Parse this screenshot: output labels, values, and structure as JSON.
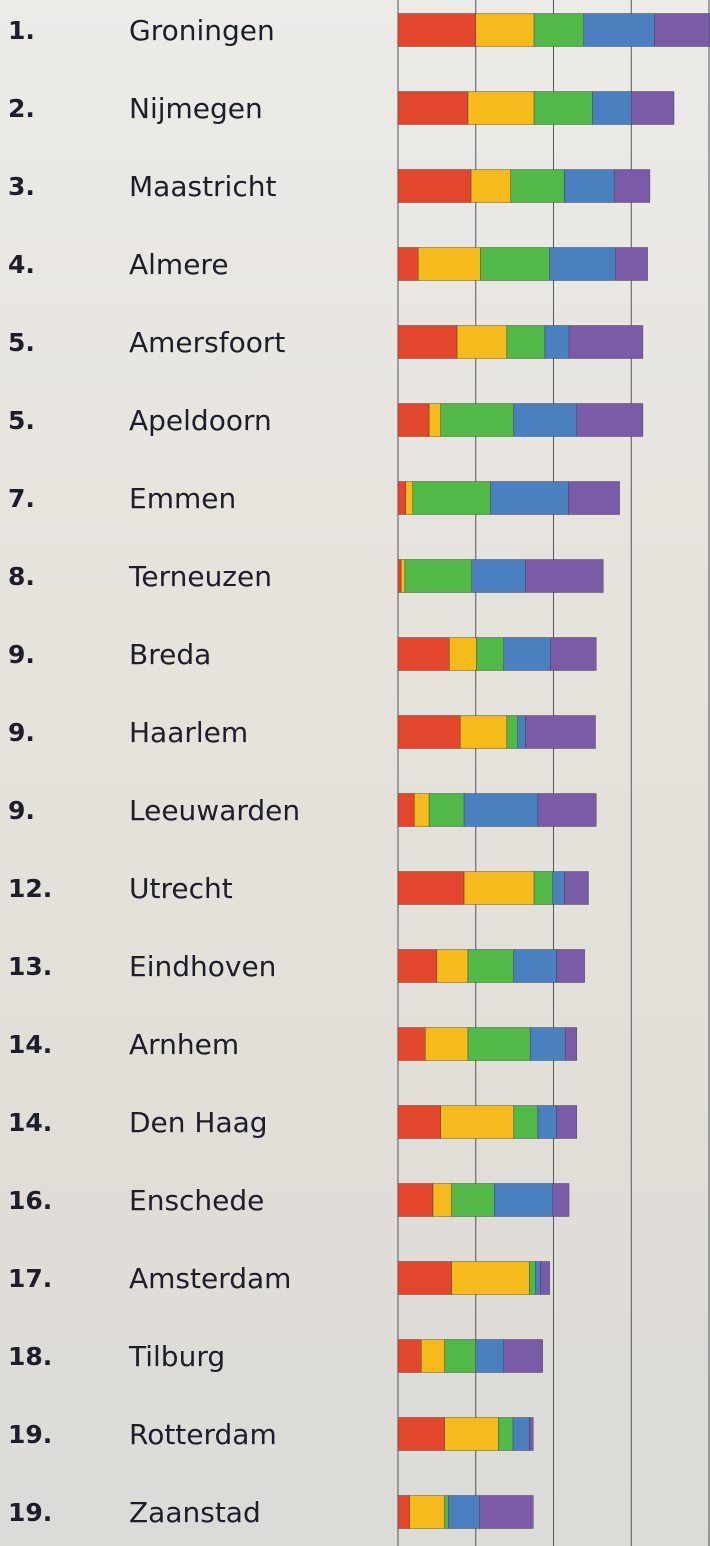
{
  "chart_data": {
    "type": "stacked-barh",
    "ranks": [
      "1.",
      "2.",
      "3.",
      "4.",
      "5.",
      "5.",
      "7.",
      "8.",
      "9.",
      "9.",
      "9.",
      "12.",
      "13.",
      "14.",
      "14.",
      "16.",
      "17.",
      "18.",
      "19.",
      "19."
    ],
    "categories": [
      "Groningen",
      "Nijmegen",
      "Maastricht",
      "Almere",
      "Amersfoort",
      "Apeldoorn",
      "Emmen",
      "Terneuzen",
      "Breda",
      "Haarlem",
      "Leeuwarden",
      "Utrecht",
      "Eindhoven",
      "Arnhem",
      "Den Haag",
      "Enschede",
      "Amsterdam",
      "Tilburg",
      "Rotterdam",
      "Zaanstad"
    ],
    "series": [
      {
        "color": "#e2462c",
        "values": [
          10,
          9,
          9.4,
          2.6,
          7.6,
          4,
          1,
          0.4,
          6.6,
          8,
          2.1,
          8.5,
          5,
          3.5,
          5.5,
          4.5,
          6.9,
          3,
          6,
          1.5
        ]
      },
      {
        "color": "#f5bb1c",
        "values": [
          7.5,
          8.5,
          5.1,
          8,
          6.4,
          1.5,
          0.9,
          0.5,
          3.5,
          6,
          1.9,
          9,
          4,
          5.5,
          9.4,
          2.4,
          10,
          3,
          6.9,
          4.5
        ]
      },
      {
        "color": "#52b847",
        "values": [
          6.4,
          7.5,
          6.9,
          8.9,
          4.9,
          9.4,
          10,
          8.6,
          3.5,
          1.4,
          4.5,
          2.4,
          5.9,
          8,
          3.1,
          5.5,
          0.8,
          4,
          1.9,
          0.5
        ]
      },
      {
        "color": "#4a80c0",
        "values": [
          9.1,
          5,
          6.4,
          8.5,
          3.1,
          8.1,
          10,
          6.9,
          6,
          1,
          9.5,
          1.5,
          5.5,
          4.5,
          2.4,
          7.5,
          0.6,
          3.6,
          2.1,
          4
        ]
      },
      {
        "color": "#7a5ba8",
        "values": [
          7.1,
          5.5,
          4.6,
          4.1,
          9.5,
          8.5,
          6.6,
          10,
          5.9,
          9,
          7.5,
          3.1,
          3.6,
          1.5,
          2.6,
          2.1,
          1.2,
          5,
          0.5,
          6.9
        ]
      }
    ],
    "xlim": [
      0,
      40
    ],
    "xticks": [
      0,
      10,
      20,
      30,
      40
    ],
    "grid": true
  }
}
